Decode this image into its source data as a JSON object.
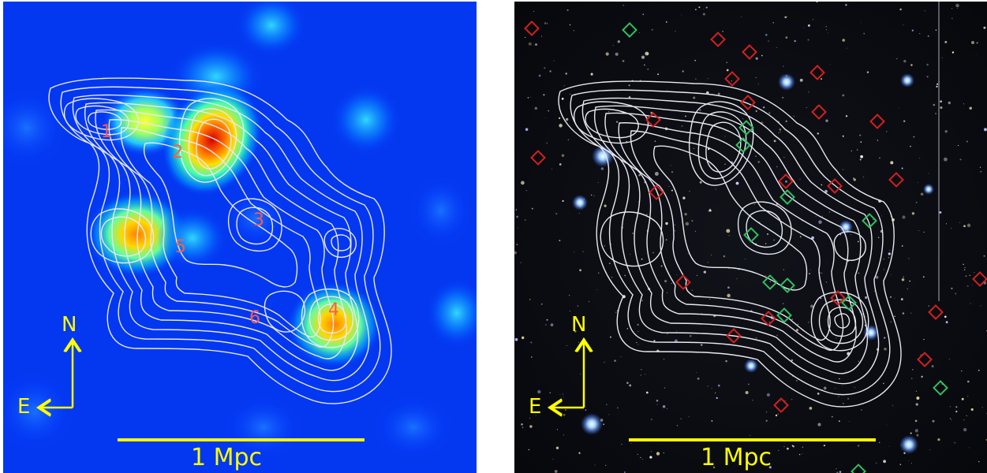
{
  "left_panel": {
    "region_labels": [
      "1",
      "2",
      "3",
      "4",
      "5",
      "6"
    ],
    "compass": {
      "north": "N",
      "east": "E"
    },
    "scale_bar": "1 Mpc"
  },
  "right_panel": {
    "compass": {
      "north": "N",
      "east": "E"
    },
    "scale_bar": "1 Mpc",
    "marker_colors": {
      "red": "#d42020",
      "green": "#30c060"
    }
  }
}
